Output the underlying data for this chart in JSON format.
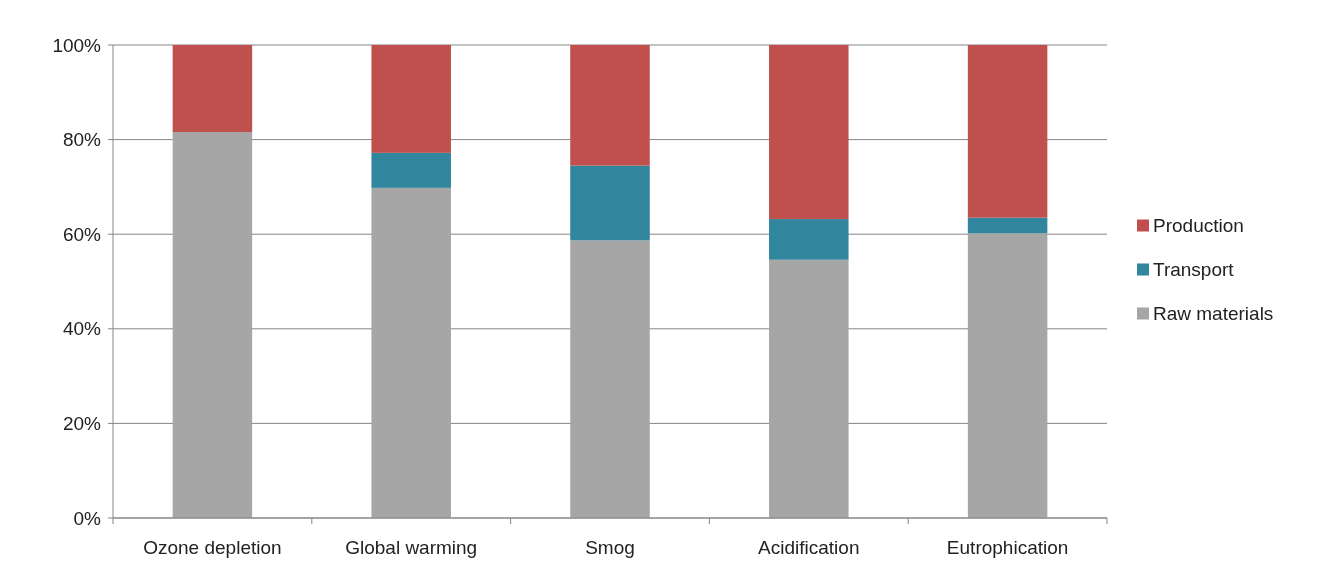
{
  "chart_data": {
    "type": "bar",
    "stacked": true,
    "categories": [
      "Ozone depletion",
      "Global warming",
      "Smog",
      "Acidification",
      "Eutrophication"
    ],
    "series": [
      {
        "name": "Raw materials",
        "color": "#a6a6a6",
        "values": [
          81.6,
          69.8,
          58.7,
          54.6,
          60.2
        ]
      },
      {
        "name": "Transport",
        "color": "#31859c",
        "values": [
          0,
          7.4,
          15.8,
          8.6,
          3.3
        ]
      },
      {
        "name": "Production",
        "color": "#c0504d",
        "values": [
          18.4,
          22.8,
          25.5,
          36.8,
          36.5
        ]
      }
    ],
    "ylim": [
      0,
      100
    ],
    "yticks": [
      {
        "value": 0,
        "label": "0%"
      },
      {
        "value": 20,
        "label": "20%"
      },
      {
        "value": 40,
        "label": "40%"
      },
      {
        "value": 60,
        "label": "60%"
      },
      {
        "value": 80,
        "label": "80%"
      },
      {
        "value": 100,
        "label": "100%"
      }
    ],
    "grid": "y",
    "legend": "right"
  }
}
